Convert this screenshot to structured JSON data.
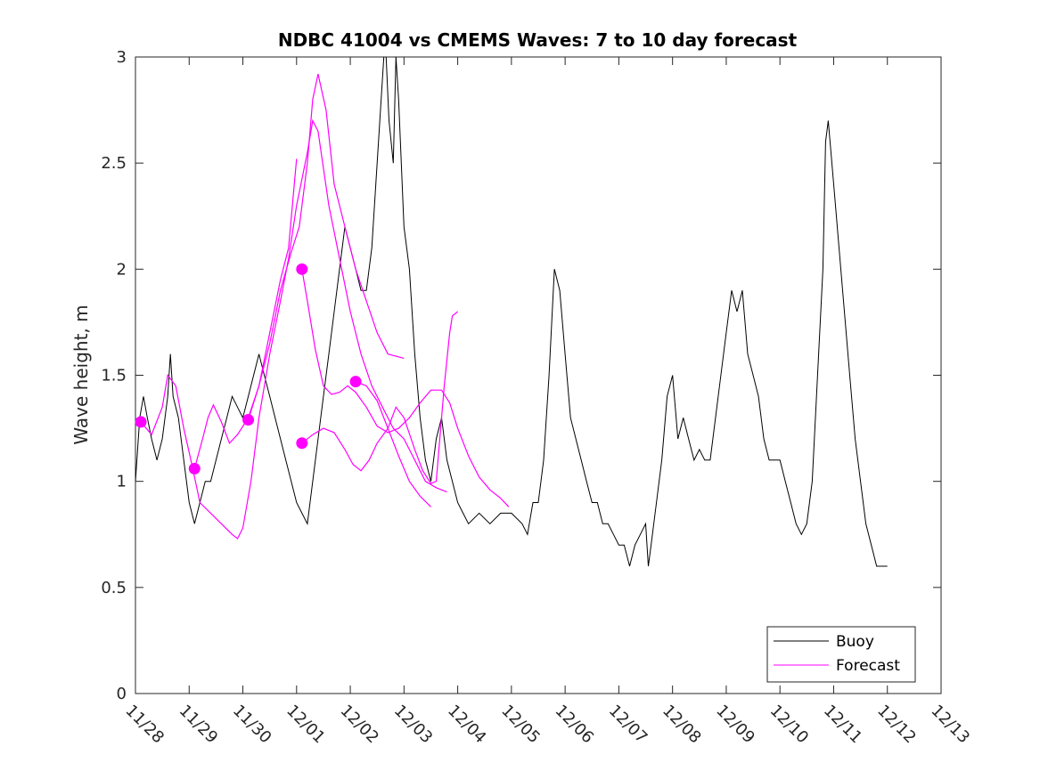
{
  "chart_data": {
    "type": "line",
    "title": "NDBC 41004 vs CMEMS Waves: 7 to 10 day forecast",
    "xlabel": "",
    "ylabel": "Wave height, m",
    "xlim": [
      0,
      15
    ],
    "ylim": [
      0,
      3
    ],
    "x_ticks": [
      0,
      1,
      2,
      3,
      4,
      5,
      6,
      7,
      8,
      9,
      10,
      11,
      12,
      13,
      14,
      15
    ],
    "x_tick_labels": [
      "11/28",
      "11/29",
      "11/30",
      "12/01",
      "12/02",
      "12/03",
      "12/04",
      "12/05",
      "12/06",
      "12/07",
      "12/08",
      "12/09",
      "12/10",
      "12/11",
      "12/12",
      "12/13"
    ],
    "y_ticks": [
      0,
      0.5,
      1,
      1.5,
      2,
      2.5,
      3
    ],
    "y_tick_labels": [
      "0",
      "0.5",
      "1",
      "1.5",
      "2",
      "2.5",
      "3"
    ],
    "colors": {
      "buoy": "#000000",
      "forecast": "#ff00ff",
      "axes": "#262626"
    },
    "legend": {
      "position": "bottom-right",
      "entries": [
        "Buoy",
        "Forecast"
      ]
    },
    "buoy": {
      "name": "Buoy",
      "points": [
        [
          0,
          1.0
        ],
        [
          0.08,
          1.3
        ],
        [
          0.15,
          1.4
        ],
        [
          0.22,
          1.3
        ],
        [
          0.3,
          1.2
        ],
        [
          0.4,
          1.1
        ],
        [
          0.5,
          1.2
        ],
        [
          0.6,
          1.4
        ],
        [
          0.65,
          1.6
        ],
        [
          0.7,
          1.4
        ],
        [
          0.8,
          1.3
        ],
        [
          0.9,
          1.1
        ],
        [
          1.0,
          0.9
        ],
        [
          1.1,
          0.8
        ],
        [
          1.2,
          0.9
        ],
        [
          1.3,
          1.0
        ],
        [
          1.4,
          1.0
        ],
        [
          1.5,
          1.1
        ],
        [
          1.6,
          1.2
        ],
        [
          1.7,
          1.3
        ],
        [
          1.8,
          1.4
        ],
        [
          1.9,
          1.35
        ],
        [
          2.0,
          1.3
        ],
        [
          2.1,
          1.4
        ],
        [
          2.2,
          1.5
        ],
        [
          2.3,
          1.6
        ],
        [
          2.4,
          1.5
        ],
        [
          2.5,
          1.4
        ],
        [
          2.6,
          1.3
        ],
        [
          2.7,
          1.2
        ],
        [
          2.8,
          1.1
        ],
        [
          2.9,
          1.0
        ],
        [
          3.0,
          0.9
        ],
        [
          3.1,
          0.85
        ],
        [
          3.2,
          0.8
        ],
        [
          3.3,
          1.0
        ],
        [
          3.4,
          1.2
        ],
        [
          3.5,
          1.4
        ],
        [
          3.6,
          1.6
        ],
        [
          3.7,
          1.8
        ],
        [
          3.8,
          2.0
        ],
        [
          3.9,
          2.2
        ],
        [
          4.0,
          2.1
        ],
        [
          4.1,
          2.0
        ],
        [
          4.2,
          1.9
        ],
        [
          4.3,
          1.9
        ],
        [
          4.4,
          2.1
        ],
        [
          4.5,
          2.5
        ],
        [
          4.6,
          2.9
        ],
        [
          4.65,
          3.1
        ],
        [
          4.72,
          2.7
        ],
        [
          4.8,
          2.5
        ],
        [
          4.85,
          3.0
        ],
        [
          4.9,
          2.8
        ],
        [
          5.0,
          2.2
        ],
        [
          5.1,
          2.0
        ],
        [
          5.2,
          1.6
        ],
        [
          5.3,
          1.3
        ],
        [
          5.4,
          1.1
        ],
        [
          5.5,
          1.0
        ],
        [
          5.6,
          1.2
        ],
        [
          5.7,
          1.3
        ],
        [
          5.8,
          1.1
        ],
        [
          5.9,
          1.0
        ],
        [
          6.0,
          0.9
        ],
        [
          6.1,
          0.85
        ],
        [
          6.2,
          0.8
        ],
        [
          6.4,
          0.85
        ],
        [
          6.6,
          0.8
        ],
        [
          6.8,
          0.85
        ],
        [
          7.0,
          0.85
        ],
        [
          7.2,
          0.8
        ],
        [
          7.3,
          0.75
        ],
        [
          7.4,
          0.9
        ],
        [
          7.5,
          0.9
        ],
        [
          7.6,
          1.1
        ],
        [
          7.7,
          1.5
        ],
        [
          7.8,
          2.0
        ],
        [
          7.9,
          1.9
        ],
        [
          8.0,
          1.6
        ],
        [
          8.1,
          1.3
        ],
        [
          8.2,
          1.2
        ],
        [
          8.3,
          1.1
        ],
        [
          8.4,
          1.0
        ],
        [
          8.5,
          0.9
        ],
        [
          8.6,
          0.9
        ],
        [
          8.7,
          0.8
        ],
        [
          8.8,
          0.8
        ],
        [
          8.9,
          0.75
        ],
        [
          9.0,
          0.7
        ],
        [
          9.1,
          0.7
        ],
        [
          9.2,
          0.6
        ],
        [
          9.3,
          0.7
        ],
        [
          9.4,
          0.75
        ],
        [
          9.5,
          0.8
        ],
        [
          9.55,
          0.6
        ],
        [
          9.6,
          0.7
        ],
        [
          9.7,
          0.9
        ],
        [
          9.8,
          1.1
        ],
        [
          9.9,
          1.4
        ],
        [
          10.0,
          1.5
        ],
        [
          10.1,
          1.2
        ],
        [
          10.2,
          1.3
        ],
        [
          10.3,
          1.2
        ],
        [
          10.4,
          1.1
        ],
        [
          10.5,
          1.15
        ],
        [
          10.6,
          1.1
        ],
        [
          10.7,
          1.1
        ],
        [
          10.8,
          1.3
        ],
        [
          10.9,
          1.5
        ],
        [
          11.0,
          1.7
        ],
        [
          11.1,
          1.9
        ],
        [
          11.2,
          1.8
        ],
        [
          11.3,
          1.9
        ],
        [
          11.4,
          1.6
        ],
        [
          11.5,
          1.5
        ],
        [
          11.6,
          1.4
        ],
        [
          11.7,
          1.2
        ],
        [
          11.8,
          1.1
        ],
        [
          11.9,
          1.1
        ],
        [
          12.0,
          1.1
        ],
        [
          12.1,
          1.0
        ],
        [
          12.2,
          0.9
        ],
        [
          12.3,
          0.8
        ],
        [
          12.4,
          0.75
        ],
        [
          12.5,
          0.8
        ],
        [
          12.6,
          1.0
        ],
        [
          12.7,
          1.5
        ],
        [
          12.8,
          2.0
        ],
        [
          12.85,
          2.6
        ],
        [
          12.9,
          2.7
        ],
        [
          13.0,
          2.4
        ],
        [
          13.1,
          2.1
        ],
        [
          13.2,
          1.8
        ],
        [
          13.3,
          1.5
        ],
        [
          13.4,
          1.2
        ],
        [
          13.5,
          1.0
        ],
        [
          13.6,
          0.8
        ],
        [
          13.7,
          0.7
        ],
        [
          13.8,
          0.6
        ],
        [
          14.0,
          0.6
        ]
      ]
    },
    "forecast": {
      "name": "Forecast",
      "series": [
        [
          [
            0.1,
            1.28
          ],
          [
            0.3,
            1.22
          ],
          [
            0.5,
            1.35
          ],
          [
            0.6,
            1.5
          ],
          [
            0.75,
            1.45
          ],
          [
            0.9,
            1.25
          ],
          [
            1.05,
            1.08
          ],
          [
            1.2,
            0.9
          ],
          [
            1.4,
            0.85
          ],
          [
            1.6,
            0.8
          ],
          [
            1.8,
            0.75
          ],
          [
            1.9,
            0.73
          ],
          [
            2.0,
            0.78
          ],
          [
            2.15,
            1.0
          ],
          [
            2.3,
            1.3
          ],
          [
            2.5,
            1.6
          ],
          [
            2.7,
            1.85
          ],
          [
            2.85,
            2.05
          ],
          [
            3.0,
            2.3
          ],
          [
            3.2,
            2.55
          ],
          [
            3.3,
            2.7
          ],
          [
            3.4,
            2.65
          ],
          [
            3.6,
            2.3
          ],
          [
            3.8,
            2.05
          ],
          [
            4.0,
            1.8
          ],
          [
            4.2,
            1.6
          ],
          [
            4.4,
            1.45
          ],
          [
            4.6,
            1.35
          ],
          [
            4.8,
            1.25
          ],
          [
            5.0,
            1.2
          ],
          [
            5.2,
            1.1
          ],
          [
            5.4,
            1.0
          ],
          [
            5.6,
            0.97
          ],
          [
            5.8,
            0.95
          ]
        ],
        [
          [
            1.1,
            1.06
          ],
          [
            1.25,
            1.2
          ],
          [
            1.35,
            1.3
          ],
          [
            1.45,
            1.36
          ],
          [
            1.6,
            1.28
          ],
          [
            1.75,
            1.18
          ],
          [
            1.9,
            1.22
          ],
          [
            2.1,
            1.3
          ],
          [
            2.3,
            1.45
          ],
          [
            2.5,
            1.65
          ],
          [
            2.7,
            1.9
          ],
          [
            2.9,
            2.08
          ],
          [
            3.05,
            2.2
          ],
          [
            3.2,
            2.5
          ],
          [
            3.3,
            2.8
          ],
          [
            3.4,
            2.92
          ],
          [
            3.55,
            2.75
          ],
          [
            3.7,
            2.4
          ],
          [
            3.9,
            2.2
          ],
          [
            4.1,
            2.0
          ],
          [
            4.3,
            1.85
          ],
          [
            4.5,
            1.7
          ],
          [
            4.7,
            1.6
          ],
          [
            5.0,
            1.58
          ]
        ],
        [
          [
            2.1,
            1.29
          ],
          [
            2.3,
            1.45
          ],
          [
            2.5,
            1.7
          ],
          [
            2.7,
            1.95
          ],
          [
            2.85,
            2.1
          ],
          [
            3.0,
            2.52
          ]
        ],
        [
          [
            3.1,
            2.0
          ],
          [
            3.2,
            1.85
          ],
          [
            3.35,
            1.62
          ],
          [
            3.5,
            1.45
          ],
          [
            3.65,
            1.41
          ],
          [
            3.8,
            1.42
          ],
          [
            3.95,
            1.45
          ],
          [
            4.1,
            1.42
          ],
          [
            4.3,
            1.35
          ],
          [
            4.5,
            1.26
          ],
          [
            4.7,
            1.23
          ],
          [
            4.9,
            1.25
          ],
          [
            5.1,
            1.3
          ],
          [
            5.3,
            1.37
          ],
          [
            5.5,
            1.43
          ],
          [
            5.7,
            1.43
          ],
          [
            5.85,
            1.37
          ],
          [
            6.0,
            1.25
          ],
          [
            6.2,
            1.12
          ],
          [
            6.4,
            1.02
          ],
          [
            6.6,
            0.96
          ],
          [
            6.8,
            0.92
          ],
          [
            6.95,
            0.88
          ]
        ],
        [
          [
            3.1,
            1.18
          ],
          [
            3.3,
            1.22
          ],
          [
            3.5,
            1.25
          ],
          [
            3.7,
            1.23
          ],
          [
            3.9,
            1.15
          ],
          [
            4.05,
            1.08
          ],
          [
            4.2,
            1.05
          ],
          [
            4.35,
            1.1
          ],
          [
            4.5,
            1.18
          ],
          [
            4.7,
            1.25
          ],
          [
            4.85,
            1.35
          ],
          [
            5.0,
            1.3
          ],
          [
            5.2,
            1.15
          ],
          [
            5.35,
            1.05
          ],
          [
            5.5,
            0.99
          ],
          [
            5.6,
            1.0
          ],
          [
            5.65,
            1.15
          ],
          [
            5.75,
            1.45
          ],
          [
            5.85,
            1.7
          ],
          [
            5.9,
            1.78
          ],
          [
            6.0,
            1.8
          ]
        ],
        [
          [
            4.1,
            1.47
          ],
          [
            4.3,
            1.45
          ],
          [
            4.5,
            1.38
          ],
          [
            4.7,
            1.25
          ],
          [
            4.9,
            1.12
          ],
          [
            5.1,
            1.0
          ],
          [
            5.3,
            0.93
          ],
          [
            5.5,
            0.88
          ]
        ]
      ],
      "start_markers": [
        [
          0.1,
          1.28
        ],
        [
          1.1,
          1.06
        ],
        [
          2.1,
          1.29
        ],
        [
          3.1,
          2.0
        ],
        [
          3.1,
          1.18
        ],
        [
          4.1,
          1.47
        ]
      ]
    }
  }
}
